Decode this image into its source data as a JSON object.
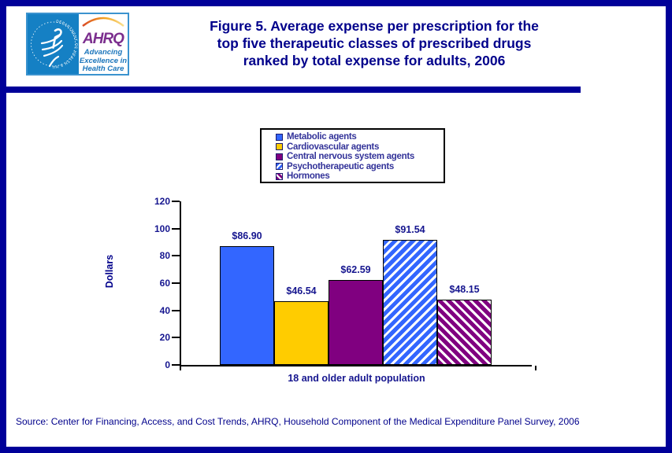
{
  "page": {
    "background": "#FFFFFF",
    "border_color": "#000099"
  },
  "header": {
    "logo": {
      "seal_text": "DEPARTMENT OF HEALTH & HUMAN SERVICES · USA",
      "ahrq": "AHRQ",
      "tagline_lines": [
        "Advancing",
        "Excellence in",
        "Health Care"
      ],
      "hhs_blue": "#1580C4",
      "ahrq_purple": "#7B2E8E",
      "tagline_blue": "#1B75BB"
    },
    "title_lines": [
      "Figure 5. Average expense per prescription for the",
      "top five therapeutic classes of prescribed drugs",
      "ranked by total expense for adults, 2006"
    ],
    "title_color": "#00008B"
  },
  "legend": {
    "text_color": "#333399",
    "swatches": [
      {
        "color": "#3366FF",
        "pattern": "solid"
      },
      {
        "color": "#FFCC00",
        "pattern": "solid"
      },
      {
        "color": "#800080",
        "pattern": "solid"
      },
      {
        "color": "#3366FF",
        "pattern": "diag-up"
      },
      {
        "color": "#800080",
        "pattern": "diag-down"
      }
    ]
  },
  "chart_data": {
    "type": "bar",
    "title": "Figure 5. Average expense per prescription for the top five therapeutic classes of prescribed drugs ranked by total expense for adults, 2006",
    "categories": [
      "Metabolic agents",
      "Cardiovascular agents",
      "Central nervous system agents",
      "Psychotherapeutic agents",
      "Hormones"
    ],
    "values": [
      86.9,
      46.54,
      62.59,
      91.54,
      48.15
    ],
    "value_labels": [
      "$86.90",
      "$46.54",
      "$62.59",
      "$91.54",
      "$48.15"
    ],
    "xlabel": "18 and older adult population",
    "ylabel": "Dollars",
    "ylim": [
      0,
      120
    ],
    "yticks": [
      0,
      20,
      40,
      60,
      80,
      100,
      120
    ],
    "grid": false,
    "legend_position": "top-center"
  },
  "source": "Source: Center for Financing, Access, and Cost Trends, AHRQ, Household Component of the Medical Expenditure Panel Survey, 2006"
}
